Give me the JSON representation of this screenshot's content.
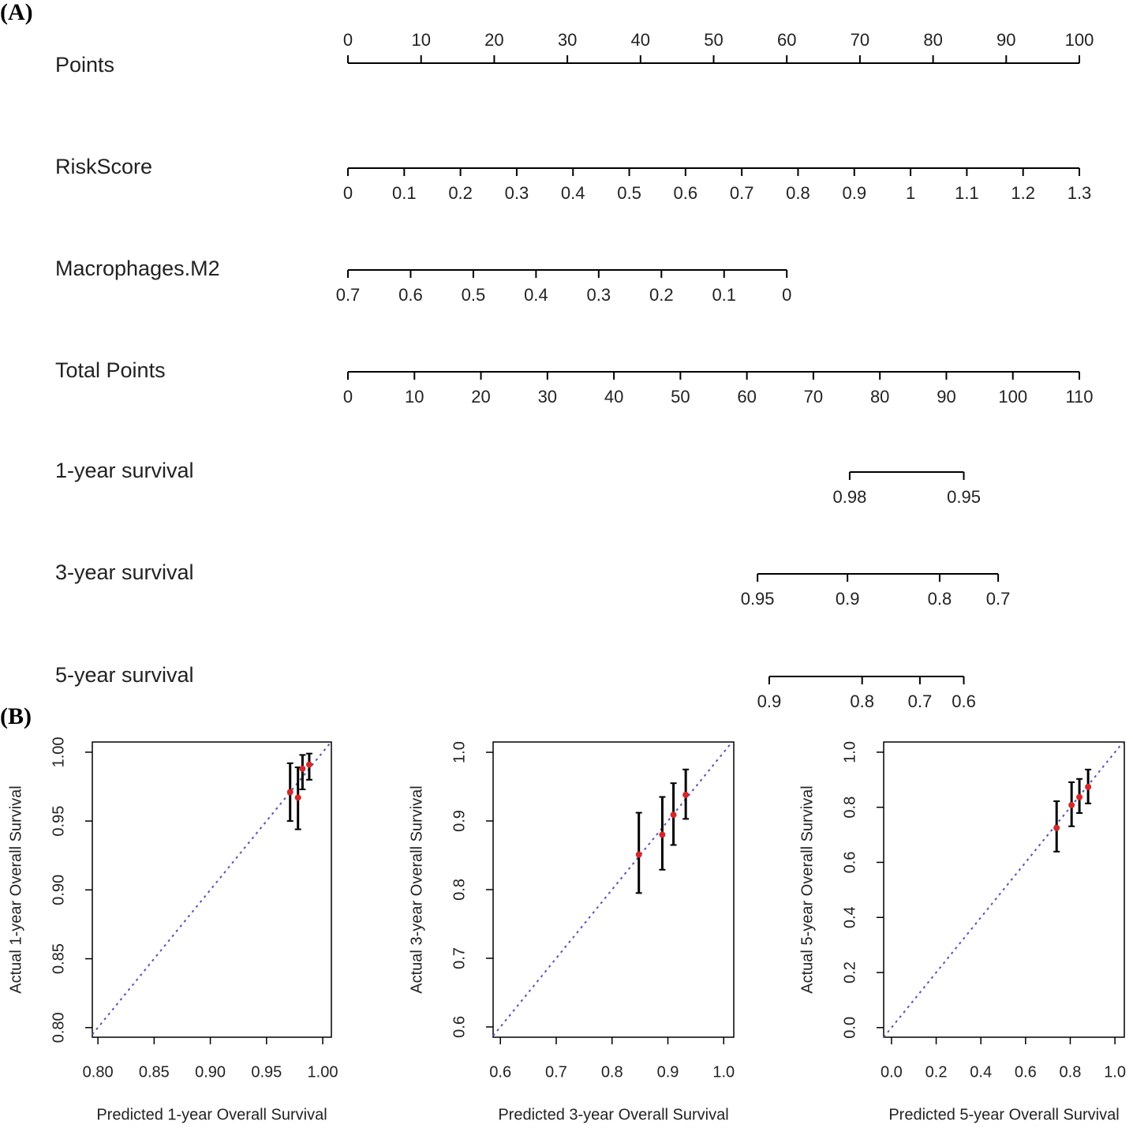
{
  "panel_labels": [
    "(A)",
    "(B)"
  ],
  "chart_data": [
    {
      "type": "nomogram",
      "rows": [
        {
          "name": "Points",
          "ticks": [
            0,
            10,
            20,
            30,
            40,
            50,
            60,
            70,
            80,
            90,
            100
          ],
          "scale": [
            0,
            100
          ],
          "points": [
            0,
            100
          ]
        },
        {
          "name": "RiskScore",
          "ticks": [
            0,
            0.1,
            0.2,
            0.3,
            0.4,
            0.5,
            0.6,
            0.7,
            0.8,
            0.9,
            1,
            1.1,
            1.2,
            1.3
          ],
          "scale": [
            0,
            1.3
          ],
          "points": [
            0,
            100
          ]
        },
        {
          "name": "Macrophages.M2",
          "ticks": [
            0.7,
            0.6,
            0.5,
            0.4,
            0.3,
            0.2,
            0.1,
            0
          ],
          "scale": [
            0.7,
            0
          ],
          "points": [
            0,
            60
          ]
        },
        {
          "name": "Total Points",
          "ticks": [
            0,
            10,
            20,
            30,
            40,
            50,
            60,
            70,
            80,
            90,
            100,
            110
          ],
          "scale": [
            0,
            110
          ],
          "points": [
            0,
            100
          ]
        },
        {
          "name": "1-year survival",
          "ticks": [
            0.98,
            0.95
          ],
          "positions": [
            68.6,
            84.2
          ]
        },
        {
          "name": "3-year survival",
          "ticks": [
            0.95,
            0.9,
            0.8,
            0.7
          ],
          "positions": [
            56.0,
            68.3,
            80.9,
            88.9
          ]
        },
        {
          "name": "5-year survival",
          "ticks": [
            0.9,
            0.8,
            0.7,
            0.6
          ],
          "positions": [
            57.6,
            70.3,
            78.2,
            84.2
          ]
        }
      ]
    },
    {
      "type": "calibration",
      "xlabel": "Predicted 1-year Overall Survival",
      "ylabel": "Actual 1-year Overall Survival",
      "xlim": [
        0.795,
        1.0077
      ],
      "ylim": [
        0.793,
        1.0074
      ],
      "xticks": [
        {
          "value": 0.8,
          "label": "0.80"
        },
        {
          "value": 0.85,
          "label": "0.85"
        },
        {
          "value": 0.9,
          "label": "0.90"
        },
        {
          "value": 0.95,
          "label": "0.95"
        },
        {
          "value": 1,
          "label": "1.00"
        }
      ],
      "yticks": [
        {
          "value": 0.8,
          "label": "0.80"
        },
        {
          "value": 0.85,
          "label": "0.85"
        },
        {
          "value": 0.9,
          "label": "0.90"
        },
        {
          "value": 0.95,
          "label": "0.95"
        },
        {
          "value": 1,
          "label": "1.00"
        }
      ],
      "x": [
        0.971,
        0.978,
        0.982,
        0.988
      ],
      "y": [
        0.971,
        0.967,
        0.988,
        0.991
      ],
      "lower": [
        0.95,
        0.944,
        0.973,
        0.98
      ],
      "upper": [
        0.992,
        0.989,
        0.998,
        0.999
      ]
    },
    {
      "type": "calibration",
      "xlabel": "Predicted 3-year Overall Survival",
      "ylabel": "Actual 3-year Overall Survival",
      "xlim": [
        0.587,
        1.018
      ],
      "ylim": [
        0.585,
        1.015
      ],
      "xticks": [
        0.6,
        0.7,
        0.8,
        0.9,
        {
          "value": 1,
          "label": "1.0"
        }
      ],
      "yticks": [
        0.6,
        0.7,
        0.8,
        0.9,
        {
          "value": 1,
          "label": "1.0"
        }
      ],
      "x": [
        0.848,
        0.89,
        0.91,
        0.932
      ],
      "y": [
        0.851,
        0.88,
        0.909,
        0.938
      ],
      "lower": [
        0.795,
        0.829,
        0.865,
        0.903
      ],
      "upper": [
        0.912,
        0.935,
        0.955,
        0.975
      ]
    },
    {
      "type": "calibration",
      "xlabel": "Predicted 5-year Overall Survival",
      "ylabel": "Actual 5-year Overall Survival",
      "xlim": [
        -0.035,
        1.042
      ],
      "ylim": [
        -0.035,
        1.037
      ],
      "xticks": [
        {
          "value": 0,
          "label": "0.0"
        },
        0.2,
        0.4,
        0.6,
        0.8,
        {
          "value": 1,
          "label": "1.0"
        }
      ],
      "yticks": [
        {
          "value": 0,
          "label": "0.0"
        },
        0.2,
        0.4,
        0.6,
        0.8,
        {
          "value": 1,
          "label": "1.0"
        }
      ],
      "x": [
        0.739,
        0.806,
        0.841,
        0.88
      ],
      "y": [
        0.725,
        0.808,
        0.837,
        0.874
      ],
      "lower": [
        0.639,
        0.731,
        0.779,
        0.814
      ],
      "upper": [
        0.822,
        0.891,
        0.903,
        0.937
      ]
    }
  ]
}
